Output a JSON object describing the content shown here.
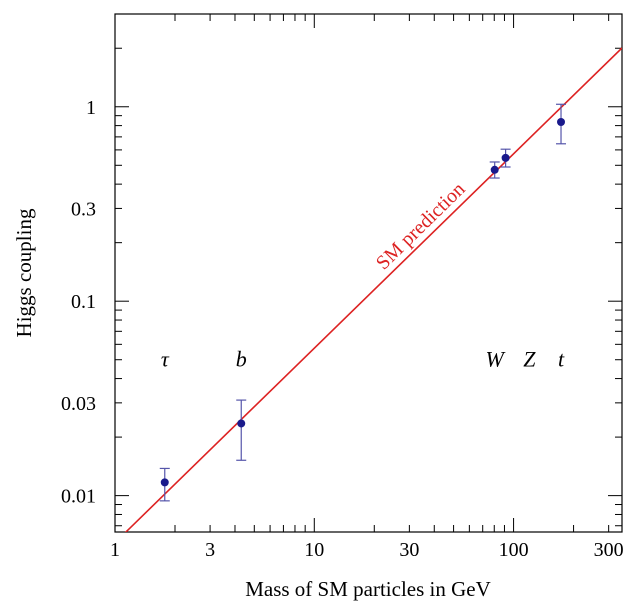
{
  "chart_data": {
    "type": "scatter",
    "title": "",
    "xlabel": "Mass of SM particles in GeV",
    "ylabel": "Higgs coupling",
    "xscale": "log",
    "yscale": "log",
    "xlim": [
      1,
      350
    ],
    "ylim": [
      0.0065,
      3.0
    ],
    "grid": false,
    "xticks": [
      {
        "value": 1,
        "label": "1"
      },
      {
        "value": 3,
        "label": "3"
      },
      {
        "value": 10,
        "label": "10"
      },
      {
        "value": 30,
        "label": "30"
      },
      {
        "value": 100,
        "label": "100"
      },
      {
        "value": 300,
        "label": "300"
      }
    ],
    "yticks": [
      {
        "value": 0.01,
        "label": "0.01"
      },
      {
        "value": 0.03,
        "label": "0.03"
      },
      {
        "value": 0.1,
        "label": "0.1"
      },
      {
        "value": 0.3,
        "label": "0.3"
      },
      {
        "value": 1,
        "label": "1"
      }
    ],
    "points": [
      {
        "x": 1.777,
        "y": 0.0117,
        "err_low": 0.0094,
        "err_high": 0.0138
      },
      {
        "x": 4.3,
        "y": 0.0235,
        "err_low": 0.0152,
        "err_high": 0.031
      },
      {
        "x": 80.4,
        "y": 0.474,
        "err_low": 0.43,
        "err_high": 0.52
      },
      {
        "x": 91.2,
        "y": 0.546,
        "err_low": 0.49,
        "err_high": 0.605
      },
      {
        "x": 173,
        "y": 0.835,
        "err_low": 0.645,
        "err_high": 1.03
      }
    ],
    "prediction_line": {
      "label": "SM prediction",
      "x": [
        1,
        350
      ],
      "y": [
        0.00573,
        2.006
      ],
      "color": "#dd2222"
    },
    "particle_labels": [
      {
        "label": "τ",
        "x": 1.777
      },
      {
        "label": "b",
        "x": 4.3
      },
      {
        "label": "W",
        "x": 80.4
      },
      {
        "label": "Z",
        "x": 120
      },
      {
        "label": "t",
        "x": 173
      }
    ],
    "particle_label_y": 0.05,
    "point_color": "#1a1a8c",
    "error_color": "#5555aa"
  }
}
